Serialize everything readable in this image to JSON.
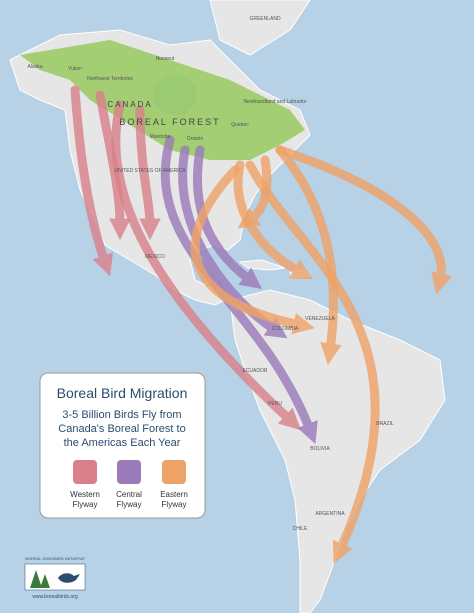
{
  "legend": {
    "title": "Boreal Bird Migration",
    "subtitle_lines": [
      "3-5 Billion Birds Fly from",
      "Canada's Boreal Forest to",
      "the Americas Each Year"
    ],
    "items": [
      {
        "lines": [
          "Western",
          "Flyway"
        ]
      },
      {
        "lines": [
          "Central",
          "Flyway"
        ]
      },
      {
        "lines": [
          "Eastern",
          "Flyway"
        ]
      }
    ]
  },
  "map_labels": {
    "forest": "BOREAL FOREST",
    "canada": "CANADA",
    "usa": "UNITED STATES OF AMERICA",
    "greenland": "GREENLAND",
    "alaska": "Alaska",
    "yukon": "Yukon",
    "nwt": "Northwest Territories",
    "nunavut": "Nunavut",
    "manitoba": "Manitoba",
    "ontario": "Ontario",
    "quebec": "Quebec",
    "newfoundland": "Newfoundland and Labrador",
    "mexico": "MEXICO",
    "colombia": "COLOMBIA",
    "venezuela": "VENEZUELA",
    "ecuador": "ECUADOR",
    "peru": "PERU",
    "brazil": "BRAZIL",
    "bolivia": "BOLIVIA",
    "argentina": "ARGENTINA",
    "chile": "CHILE"
  },
  "logo": {
    "name": "BOREAL SONGBIRD INITIATIVE",
    "url": "www.borealbirds.org"
  }
}
